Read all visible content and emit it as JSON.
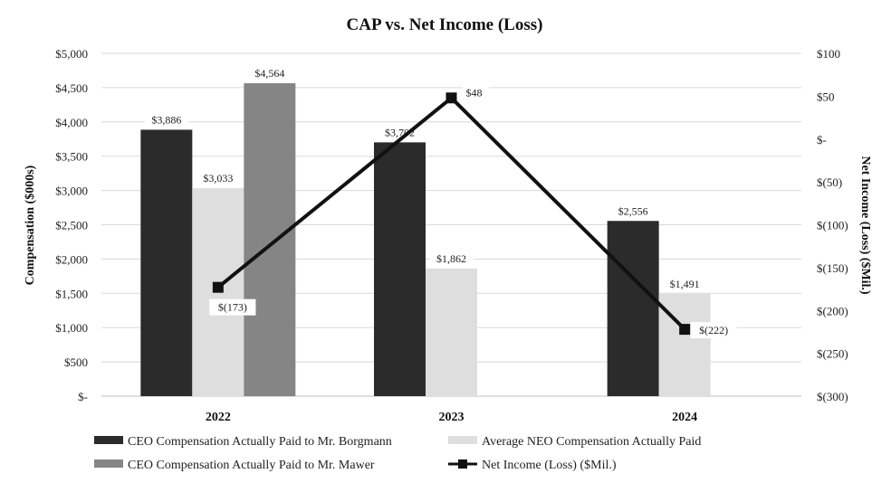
{
  "chart_data": {
    "type": "bar",
    "title": "CAP vs. Net Income (Loss)",
    "categories": [
      "2022",
      "2023",
      "2024"
    ],
    "ylabel": "Compensation ($000s)",
    "y2label": "Net Income (Loss) ($Mil.)",
    "ylim": [
      0,
      5000
    ],
    "y2lim": [
      -300,
      100
    ],
    "yticks": [
      0,
      500,
      1000,
      1500,
      2000,
      2500,
      3000,
      3500,
      4000,
      4500,
      5000
    ],
    "ytick_labels": [
      "$-",
      "$500",
      "$1,000",
      "$1,500",
      "$2,000",
      "$2,500",
      "$3,000",
      "$3,500",
      "$4,000",
      "$4,500",
      "$5,000"
    ],
    "y2ticks": [
      -300,
      -250,
      -200,
      -150,
      -100,
      -50,
      0,
      50,
      100
    ],
    "y2tick_labels": [
      "$(300)",
      "$(250)",
      "$(200)",
      "$(150)",
      "$(100)",
      "$(50)",
      "$-",
      "$50",
      "$100"
    ],
    "series": [
      {
        "name": "CEO Compensation Actually Paid to Mr. Borgmann",
        "kind": "bar",
        "color": "#2b2b2b",
        "values": [
          3886,
          3702,
          2556
        ],
        "labels": [
          "$3,886",
          "$3,702",
          "$2,556"
        ]
      },
      {
        "name": "Average NEO Compensation Actually Paid",
        "kind": "bar",
        "color": "#dedede",
        "values": [
          3033,
          1862,
          1491
        ],
        "labels": [
          "$3,033",
          "$1,862",
          "$1,491"
        ]
      },
      {
        "name": "CEO Compensation Actually Paid to Mr. Mawer",
        "kind": "bar",
        "color": "#858585",
        "values": [
          4564,
          null,
          null
        ],
        "labels": [
          "$4,564",
          null,
          null
        ]
      },
      {
        "name": "Net Income (Loss) ($Mil.)",
        "kind": "line",
        "axis": "right",
        "color": "#111111",
        "values": [
          -173,
          48,
          -222
        ],
        "labels": [
          "$(173)",
          "$48",
          "$(222)"
        ]
      }
    ],
    "legend": [
      "CEO Compensation Actually Paid to Mr. Borgmann",
      "Average NEO Compensation Actually Paid",
      "CEO Compensation Actually Paid to Mr. Mawer",
      "Net Income (Loss) ($Mil.)"
    ]
  }
}
